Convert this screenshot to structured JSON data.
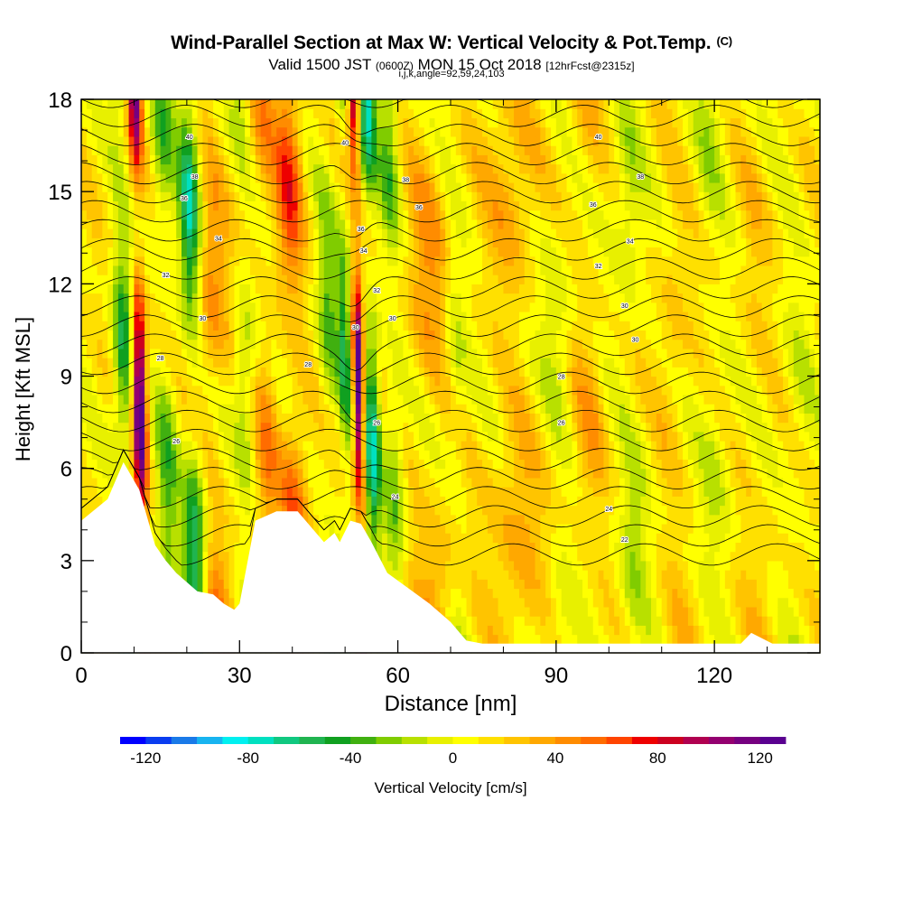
{
  "header": {
    "title": "Wind-Parallel Section at Max W: Vertical Velocity & Pot.Temp.",
    "title_tag": "(C)",
    "valid_prefix": "Valid 1500 JST",
    "valid_utc": "(0600Z)",
    "valid_date": "MON 15 Oct 2018",
    "forecast": "[12hrFcst@2315z]",
    "params": "i,j,k,angle=92,59,24,103"
  },
  "chart_data": {
    "type": "heatmap",
    "xlabel": "Distance [nm]",
    "ylabel": "Height [Kft MSL]",
    "xlim": [
      0,
      140
    ],
    "ylim": [
      0,
      18
    ],
    "xticks": [
      0,
      30,
      60,
      90,
      120
    ],
    "xtick_labels": [
      "0",
      "30",
      "60",
      "90",
      "120"
    ],
    "yticks": [
      0,
      3,
      6,
      9,
      12,
      15,
      18
    ],
    "ytick_labels": [
      "0",
      "3",
      "6",
      "9",
      "12",
      "15",
      "18"
    ],
    "grid": false,
    "terrain": {
      "x": [
        0,
        5,
        8,
        11,
        14,
        16,
        18,
        22,
        25,
        27,
        29,
        30,
        33,
        37,
        41,
        44,
        46,
        48,
        49,
        51,
        53,
        55,
        58,
        62,
        66,
        70,
        73,
        76,
        80,
        85,
        90,
        95,
        100,
        105,
        110,
        115,
        125,
        127,
        131,
        135,
        140
      ],
      "h": [
        4.3,
        5.0,
        6.2,
        5.3,
        3.5,
        3.0,
        2.6,
        2.0,
        1.9,
        1.6,
        1.4,
        1.6,
        4.3,
        4.6,
        4.6,
        4.0,
        3.6,
        3.9,
        3.6,
        4.3,
        4.2,
        3.6,
        2.6,
        2.1,
        1.6,
        1.0,
        0.4,
        0.3,
        0.3,
        0.3,
        0.3,
        0.3,
        0.3,
        0.3,
        0.3,
        0.3,
        0.3,
        0.65,
        0.3,
        0.3,
        0.3
      ]
    },
    "velocity_bands": [
      {
        "x": 8,
        "width": 2.0,
        "amp": -60
      },
      {
        "x": 11,
        "width": 1.3,
        "amp": 135
      },
      {
        "x": 16,
        "width": 2.2,
        "amp": -40
      },
      {
        "x": 21,
        "width": 2.0,
        "amp": -75
      },
      {
        "x": 25,
        "width": 3.0,
        "amp": 35
      },
      {
        "x": 31,
        "width": 2.0,
        "amp": -30
      },
      {
        "x": 35,
        "width": 2.5,
        "amp": 30
      },
      {
        "x": 40,
        "width": 2.5,
        "amp": 55
      },
      {
        "x": 47,
        "width": 2.0,
        "amp": -40
      },
      {
        "x": 50,
        "width": 1.2,
        "amp": -55
      },
      {
        "x": 52.5,
        "width": 1.0,
        "amp": 130
      },
      {
        "x": 55,
        "width": 1.5,
        "amp": -80
      },
      {
        "x": 59,
        "width": 2.0,
        "amp": -40
      },
      {
        "x": 66,
        "width": 4.0,
        "amp": 30
      },
      {
        "x": 71,
        "width": 2.0,
        "amp": -20
      },
      {
        "x": 82,
        "width": 5.0,
        "amp": 25
      },
      {
        "x": 90,
        "width": 3.0,
        "amp": -20
      },
      {
        "x": 96,
        "width": 3.0,
        "amp": 20
      },
      {
        "x": 104,
        "width": 3.0,
        "amp": -25
      },
      {
        "x": 112,
        "width": 3.0,
        "amp": 15
      },
      {
        "x": 120,
        "width": 3.0,
        "amp": -20
      },
      {
        "x": 128,
        "width": 3.0,
        "amp": 10
      },
      {
        "x": 136,
        "width": 3.0,
        "amp": -15
      }
    ],
    "theta_levels": 25,
    "theta_label_positions": [
      {
        "x": 20.5,
        "y": 16.8,
        "text": "40"
      },
      {
        "x": 21.5,
        "y": 15.5,
        "text": "38"
      },
      {
        "x": 19.5,
        "y": 14.8,
        "text": "36"
      },
      {
        "x": 26,
        "y": 13.5,
        "text": "34"
      },
      {
        "x": 16,
        "y": 12.3,
        "text": "32"
      },
      {
        "x": 23,
        "y": 10.9,
        "text": "30"
      },
      {
        "x": 15,
        "y": 9.6,
        "text": "28"
      },
      {
        "x": 18,
        "y": 6.9,
        "text": "26"
      },
      {
        "x": 43,
        "y": 9.4,
        "text": "28"
      },
      {
        "x": 50,
        "y": 16.6,
        "text": "40"
      },
      {
        "x": 53,
        "y": 13.8,
        "text": "36"
      },
      {
        "x": 53.5,
        "y": 13.1,
        "text": "34"
      },
      {
        "x": 56,
        "y": 11.8,
        "text": "32"
      },
      {
        "x": 59,
        "y": 10.9,
        "text": "30"
      },
      {
        "x": 52,
        "y": 10.6,
        "text": "30"
      },
      {
        "x": 56,
        "y": 7.5,
        "text": "26"
      },
      {
        "x": 59.5,
        "y": 5.1,
        "text": "24"
      },
      {
        "x": 61.5,
        "y": 15.4,
        "text": "38"
      },
      {
        "x": 64,
        "y": 14.5,
        "text": "36"
      },
      {
        "x": 98,
        "y": 16.8,
        "text": "40"
      },
      {
        "x": 106,
        "y": 15.5,
        "text": "38"
      },
      {
        "x": 97,
        "y": 14.6,
        "text": "36"
      },
      {
        "x": 104,
        "y": 13.4,
        "text": "34"
      },
      {
        "x": 98,
        "y": 12.6,
        "text": "32"
      },
      {
        "x": 103,
        "y": 11.3,
        "text": "30"
      },
      {
        "x": 105,
        "y": 10.2,
        "text": "30"
      },
      {
        "x": 91,
        "y": 9.0,
        "text": "28"
      },
      {
        "x": 91,
        "y": 7.5,
        "text": "26"
      },
      {
        "x": 100,
        "y": 4.7,
        "text": "24"
      },
      {
        "x": 103,
        "y": 3.7,
        "text": "22"
      }
    ],
    "colorbar": {
      "title": "Vertical Velocity [cm/s]",
      "min": -130,
      "max": 130,
      "step": 10,
      "tick_values": [
        -120,
        -80,
        -40,
        0,
        40,
        80,
        120
      ],
      "tick_labels": [
        "-120",
        "-80",
        "-40",
        "0",
        "40",
        "80",
        "120"
      ],
      "colors": [
        "#0000ff",
        "#0a3cf0",
        "#1a7ae8",
        "#18b4f0",
        "#00f0f0",
        "#00e0c0",
        "#10c880",
        "#20b450",
        "#10a020",
        "#40b010",
        "#80cc00",
        "#b8e000",
        "#e8f000",
        "#ffff00",
        "#ffe000",
        "#ffc400",
        "#ffa800",
        "#ff8c00",
        "#ff6c00",
        "#ff4400",
        "#ee0000",
        "#cc0020",
        "#b00050",
        "#940070",
        "#760080",
        "#5a0090"
      ]
    }
  }
}
